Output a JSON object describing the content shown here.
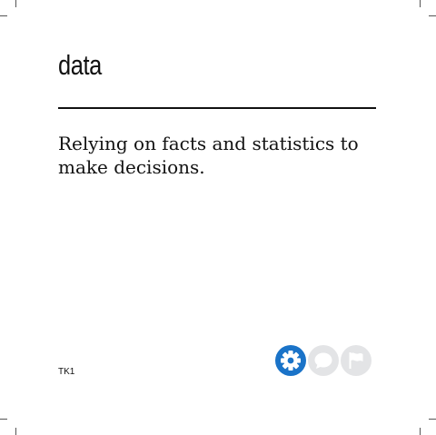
{
  "card": {
    "term": "data",
    "definition": "Relying on facts and statistics to make decisions.",
    "code": "TK1"
  },
  "icons": [
    {
      "name": "gear-icon",
      "state": "active",
      "color": "#1a73c8"
    },
    {
      "name": "speech-bubble-icon",
      "state": "inactive",
      "color": "#e3e4e6"
    },
    {
      "name": "flag-icon",
      "state": "inactive",
      "color": "#e3e4e6"
    }
  ]
}
